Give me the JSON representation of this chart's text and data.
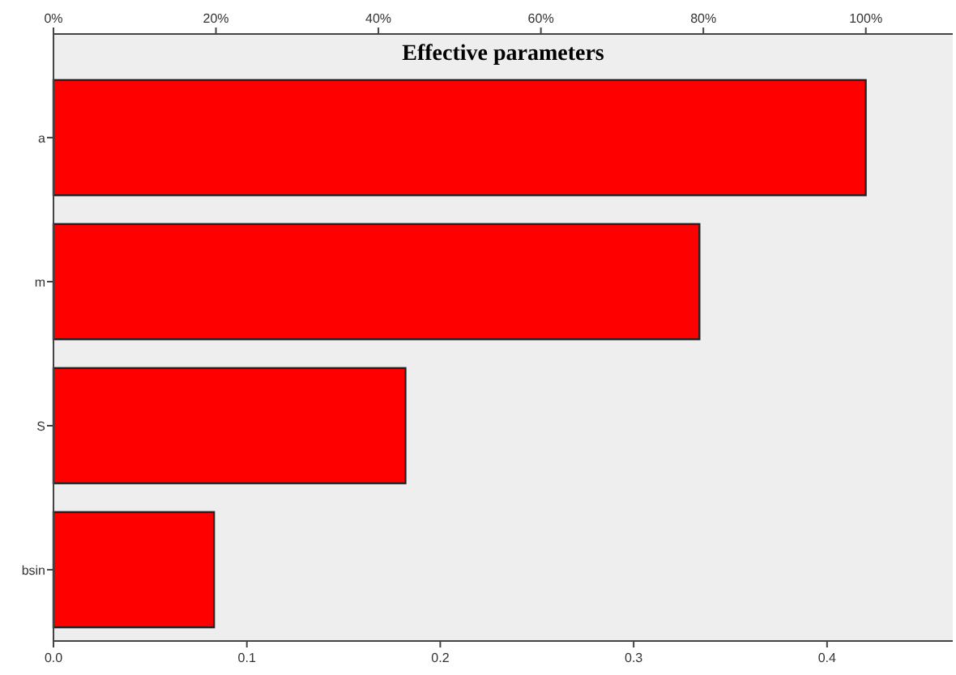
{
  "chart_data": {
    "type": "bar",
    "orientation": "horizontal",
    "title": "Effective parameters",
    "categories": [
      "a",
      "m",
      "S",
      "bsin"
    ],
    "values": [
      0.42,
      0.334,
      0.182,
      0.083
    ],
    "color": "#ff0000",
    "xlim": [
      0,
      0.465
    ],
    "xticks": [
      {
        "value": 0,
        "label": "0.0"
      },
      0.1,
      0.2,
      0.3,
      0.4
    ],
    "x2lim": [
      0,
      110.7
    ],
    "x2ticks": [
      {
        "value": 0,
        "label": "0%"
      },
      {
        "value": 20,
        "label": "20%"
      },
      {
        "value": 40,
        "label": "40%"
      },
      {
        "value": 60,
        "label": "60%"
      },
      {
        "value": 80,
        "label": "80%"
      },
      {
        "value": 100,
        "label": "100%"
      }
    ],
    "grid": false
  }
}
